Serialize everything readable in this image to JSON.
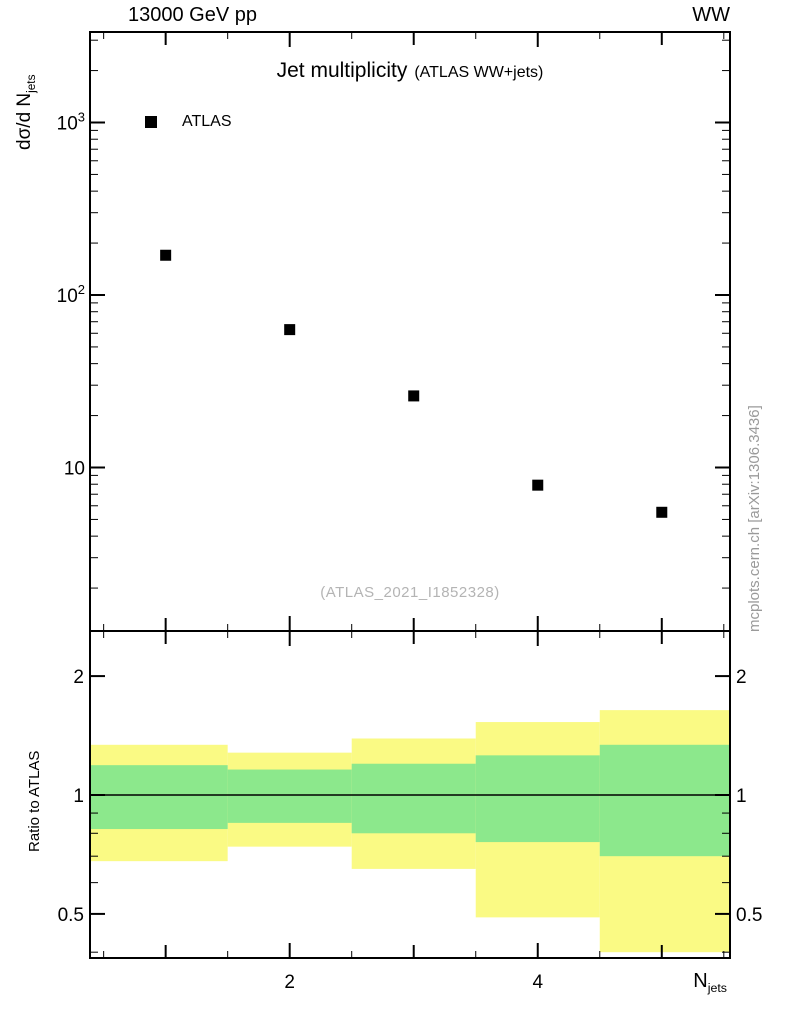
{
  "header": {
    "left": "13000 GeV pp",
    "right": "WW"
  },
  "watermark": "(ATLAS_2021_I1852328)",
  "side_caption": "mcplots.cern.ch [arXiv:1306.3436]",
  "axes": {
    "ylabel_main": "dσ/d N",
    "ylabel_sub": "jets",
    "xlabel_main": "N",
    "xlabel_sub": "jets"
  },
  "chart_data": {
    "type": "scatter",
    "title": "Jet multiplicity",
    "subtitle": "(ATLAS WW+jets)",
    "top_panel": {
      "yscale": "log",
      "ylim": [
        1.15,
        3300
      ],
      "xlim": [
        0.39,
        5.55
      ],
      "yticks": [
        {
          "value": 1000,
          "base": "10",
          "exp": "3"
        },
        {
          "value": 100,
          "base": "10",
          "exp": "2"
        },
        {
          "value": 10,
          "base": "10",
          "exp": ""
        }
      ],
      "series": [
        {
          "name": "ATLAS",
          "marker": "filled-square",
          "color": "#000000",
          "x": [
            1,
            2,
            3,
            4,
            5
          ],
          "y": [
            170,
            63,
            26,
            7.9,
            5.5
          ]
        }
      ]
    },
    "ratio_panel": {
      "ylabel": "Ratio to ATLAS",
      "yscale": "log",
      "ylim": [
        0.387,
        2.59
      ],
      "ref_line": 1,
      "yticks": [
        {
          "value": 0.5,
          "label": "0.5"
        },
        {
          "value": 1,
          "label": "1"
        },
        {
          "value": 2,
          "label": "2"
        }
      ],
      "bands": [
        {
          "xlo": 0.39,
          "xhi": 1.5,
          "yellow_lo": 0.68,
          "yellow_hi": 1.34,
          "green_lo": 0.82,
          "green_hi": 1.19
        },
        {
          "xlo": 1.5,
          "xhi": 2.5,
          "yellow_lo": 0.74,
          "yellow_hi": 1.28,
          "green_lo": 0.85,
          "green_hi": 1.16
        },
        {
          "xlo": 2.5,
          "xhi": 3.5,
          "yellow_lo": 0.65,
          "yellow_hi": 1.39,
          "green_lo": 0.8,
          "green_hi": 1.2
        },
        {
          "xlo": 3.5,
          "xhi": 4.5,
          "yellow_lo": 0.49,
          "yellow_hi": 1.53,
          "green_lo": 0.76,
          "green_hi": 1.26
        },
        {
          "xlo": 4.5,
          "xhi": 5.55,
          "yellow_lo": 0.4,
          "yellow_hi": 1.64,
          "green_lo": 0.7,
          "green_hi": 1.34
        }
      ]
    },
    "xticks": {
      "major": [
        {
          "value": 2,
          "label": "2"
        },
        {
          "value": 4,
          "label": "4"
        }
      ],
      "minor": [
        1,
        3,
        5
      ]
    },
    "colors": {
      "yellow_band": "#fafa84",
      "green_band": "#8ce88c",
      "marker": "#000000",
      "frame": "#000000"
    }
  }
}
